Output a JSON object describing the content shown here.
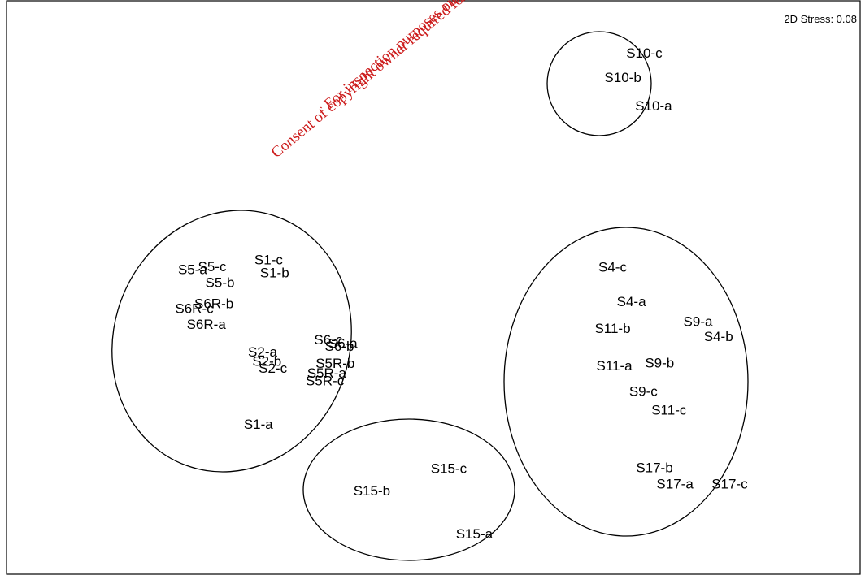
{
  "chart_data": {
    "type": "scatter",
    "title": "",
    "stress_label": "2D Stress: 0.08",
    "watermark": [
      "For inspection purposes only.",
      "Consent of copyright owner required for any other use."
    ],
    "points": [
      {
        "label": "S10-c",
        "x": 0.747,
        "y": 0.907
      },
      {
        "label": "S10-b",
        "x": 0.722,
        "y": 0.865
      },
      {
        "label": "S10-a",
        "x": 0.758,
        "y": 0.815
      },
      {
        "label": "S5-c",
        "x": 0.241,
        "y": 0.535
      },
      {
        "label": "S5-a",
        "x": 0.218,
        "y": 0.53
      },
      {
        "label": "S5-b",
        "x": 0.25,
        "y": 0.507
      },
      {
        "label": "S1-c",
        "x": 0.307,
        "y": 0.547
      },
      {
        "label": "S1-b",
        "x": 0.314,
        "y": 0.524
      },
      {
        "label": "S6R-b",
        "x": 0.243,
        "y": 0.47
      },
      {
        "label": "S6R-c",
        "x": 0.22,
        "y": 0.462
      },
      {
        "label": "S6R-a",
        "x": 0.234,
        "y": 0.434
      },
      {
        "label": "S6-c",
        "x": 0.377,
        "y": 0.407
      },
      {
        "label": "S6-a",
        "x": 0.394,
        "y": 0.401
      },
      {
        "label": "S6-b",
        "x": 0.39,
        "y": 0.396
      },
      {
        "label": "S2-a",
        "x": 0.3,
        "y": 0.386
      },
      {
        "label": "S2-b",
        "x": 0.305,
        "y": 0.37
      },
      {
        "label": "S2-c",
        "x": 0.312,
        "y": 0.358
      },
      {
        "label": "S5R-b",
        "x": 0.385,
        "y": 0.366
      },
      {
        "label": "S5R-a",
        "x": 0.375,
        "y": 0.349
      },
      {
        "label": "S5R-c",
        "x": 0.373,
        "y": 0.336
      },
      {
        "label": "S1-a",
        "x": 0.295,
        "y": 0.26
      },
      {
        "label": "S4-c",
        "x": 0.71,
        "y": 0.534
      },
      {
        "label": "S4-a",
        "x": 0.732,
        "y": 0.474
      },
      {
        "label": "S9-a",
        "x": 0.81,
        "y": 0.439
      },
      {
        "label": "S11-b",
        "x": 0.71,
        "y": 0.427
      },
      {
        "label": "S4-b",
        "x": 0.834,
        "y": 0.413
      },
      {
        "label": "S11-a",
        "x": 0.712,
        "y": 0.362
      },
      {
        "label": "S9-b",
        "x": 0.765,
        "y": 0.367
      },
      {
        "label": "S9-c",
        "x": 0.746,
        "y": 0.317
      },
      {
        "label": "S11-c",
        "x": 0.776,
        "y": 0.285
      },
      {
        "label": "S17-b",
        "x": 0.759,
        "y": 0.184
      },
      {
        "label": "S17-a",
        "x": 0.783,
        "y": 0.156
      },
      {
        "label": "S17-c",
        "x": 0.847,
        "y": 0.156
      },
      {
        "label": "S15-c",
        "x": 0.518,
        "y": 0.183
      },
      {
        "label": "S15-b",
        "x": 0.428,
        "y": 0.144
      },
      {
        "label": "S15-a",
        "x": 0.548,
        "y": 0.069
      }
    ],
    "clusters": [
      {
        "members": [
          "S10-a",
          "S10-b",
          "S10-c"
        ]
      },
      {
        "members": [
          "S1-a",
          "S1-b",
          "S1-c",
          "S2-a",
          "S2-b",
          "S2-c",
          "S5-a",
          "S5-b",
          "S5-c",
          "S5R-a",
          "S5R-b",
          "S5R-c",
          "S6-a",
          "S6-b",
          "S6-c",
          "S6R-a",
          "S6R-b",
          "S6R-c"
        ]
      },
      {
        "members": [
          "S4-a",
          "S4-b",
          "S4-c",
          "S9-a",
          "S9-b",
          "S9-c",
          "S11-a",
          "S11-b",
          "S11-c",
          "S17-a",
          "S17-b",
          "S17-c"
        ]
      },
      {
        "members": [
          "S15-a",
          "S15-b",
          "S15-c"
        ]
      }
    ],
    "xlim": [
      0,
      1
    ],
    "ylim": [
      0,
      1
    ],
    "axes_shown": false,
    "grid": false
  }
}
